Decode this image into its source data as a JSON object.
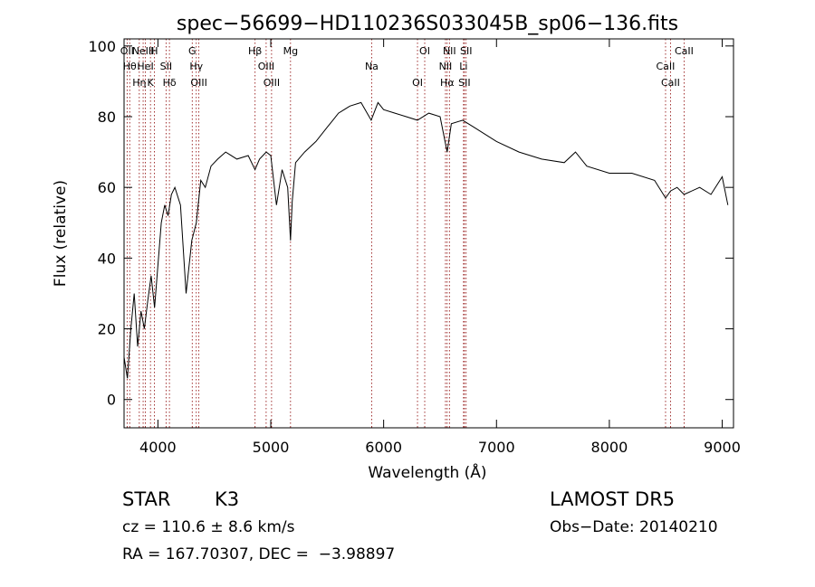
{
  "chart_data": {
    "type": "line",
    "title": "spec−56699−HD110236S033045B_sp06−136.fits",
    "xlabel": "Wavelength (Å)",
    "ylabel": "Flux (relative)",
    "xlim": [
      3700,
      9100
    ],
    "ylim": [
      -8,
      102
    ],
    "xticks": [
      4000,
      5000,
      6000,
      7000,
      8000,
      9000
    ],
    "yticks": [
      0,
      20,
      40,
      60,
      80,
      100
    ],
    "grid": false,
    "line_color": "#000000",
    "marker_color": "#8b0000",
    "series": [
      {
        "x": [
          3700,
          3730,
          3760,
          3790,
          3820,
          3850,
          3880,
          3910,
          3940,
          3970,
          4000,
          4030,
          4060,
          4090,
          4120,
          4150,
          4200,
          4250,
          4300,
          4340,
          4380,
          4420,
          4470,
          4530,
          4600,
          4700,
          4800,
          4860,
          4900,
          4960,
          5000,
          5050,
          5100,
          5150,
          5175,
          5190,
          5220,
          5300,
          5400,
          5500,
          5550,
          5600,
          5700,
          5800,
          5890,
          5950,
          6000,
          6100,
          6200,
          6300,
          6400,
          6500,
          6563,
          6600,
          6700,
          6800,
          7000,
          7200,
          7400,
          7600,
          7700,
          7800,
          8000,
          8200,
          8400,
          8498,
          8542,
          8600,
          8662,
          8800,
          8900,
          9000,
          9050
        ],
        "y": [
          12,
          6,
          20,
          30,
          15,
          25,
          20,
          28,
          35,
          26,
          38,
          50,
          55,
          52,
          58,
          60,
          55,
          30,
          45,
          50,
          62,
          60,
          66,
          68,
          70,
          68,
          69,
          65,
          68,
          70,
          69,
          55,
          65,
          60,
          45,
          56,
          67,
          70,
          73,
          77,
          79,
          81,
          83,
          84,
          79,
          84,
          82,
          81,
          80,
          79,
          81,
          80,
          70,
          78,
          79,
          77,
          73,
          70,
          68,
          67,
          70,
          66,
          64,
          64,
          62,
          57,
          59,
          60,
          58,
          60,
          58,
          63,
          55
        ]
      }
    ],
    "line_markers": [
      {
        "x": 3727,
        "labels": [
          "OII"
        ]
      },
      {
        "x": 3750,
        "labels": [
          "Hθ"
        ]
      },
      {
        "x": 3835,
        "labels": [
          "Hη"
        ]
      },
      {
        "x": 3869,
        "labels": [
          "NeIII"
        ]
      },
      {
        "x": 3889,
        "labels": [
          "HeI"
        ]
      },
      {
        "x": 3934,
        "labels": [
          "K"
        ]
      },
      {
        "x": 3968,
        "labels": [
          "H"
        ]
      },
      {
        "x": 4072,
        "labels": [
          "SII"
        ]
      },
      {
        "x": 4102,
        "labels": [
          "Hδ"
        ]
      },
      {
        "x": 4304,
        "labels": [
          "G"
        ]
      },
      {
        "x": 4340,
        "labels": [
          "Hγ"
        ]
      },
      {
        "x": 4363,
        "labels": [
          "OIII"
        ]
      },
      {
        "x": 4861,
        "labels": [
          "Hβ"
        ]
      },
      {
        "x": 4959,
        "labels": [
          "OIII"
        ]
      },
      {
        "x": 5007,
        "labels": [
          "OIII"
        ]
      },
      {
        "x": 5175,
        "labels": [
          "Mg"
        ]
      },
      {
        "x": 5894,
        "labels": [
          "Na"
        ]
      },
      {
        "x": 6300,
        "labels": [
          "OI"
        ]
      },
      {
        "x": 6364,
        "labels": [
          "OI"
        ]
      },
      {
        "x": 6548,
        "labels": [
          "NII"
        ]
      },
      {
        "x": 6563,
        "labels": [
          "Hα"
        ]
      },
      {
        "x": 6583,
        "labels": [
          "NII"
        ]
      },
      {
        "x": 6708,
        "labels": [
          "Li"
        ]
      },
      {
        "x": 6716,
        "labels": [
          "SII"
        ]
      },
      {
        "x": 6731,
        "labels": [
          "SII"
        ]
      },
      {
        "x": 8498,
        "labels": [
          "CaII"
        ]
      },
      {
        "x": 8542,
        "labels": [
          "CaII"
        ]
      },
      {
        "x": 8662,
        "labels": [
          "CaII"
        ]
      }
    ]
  },
  "info": {
    "class_label": "STAR",
    "subclass": "K3",
    "velocity": "cz = 110.6 ± 8.6 km/s",
    "coordinates": "RA = 167.70307, DEC =  −3.98897",
    "survey": "LAMOST DR5",
    "obs_date": "Obs−Date: 20140210"
  }
}
